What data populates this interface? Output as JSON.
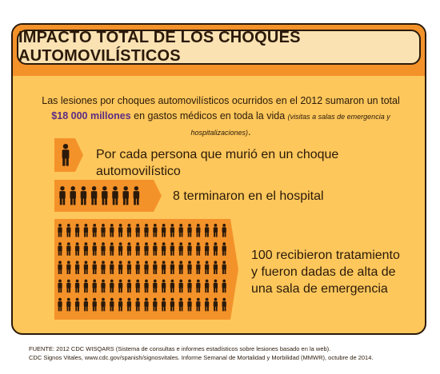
{
  "title": "IMPACTO TOTAL DE LOS CHOQUES AUTOMOVILÍSTICOS",
  "intro": {
    "line1": "Las lesiones por choques automovilísticos ocurridos en el 2012 sumaron un total",
    "amount": "$18 000 millones",
    "line2_text": " en gastos médicos en toda la vida ",
    "line2_small": "(visitas a salas de emergencia y hospitalizaciones)",
    "line2_end": "."
  },
  "stats": [
    {
      "text": "Por cada persona que murió en un choque automovilístico",
      "icon_count": 1
    },
    {
      "text": "8 terminaron en el hospital",
      "icon_count": 8
    },
    {
      "text_lines": [
        "100 recibieron tratamiento",
        "y fueron dadas de alta de",
        "una sala de emergencia"
      ],
      "icon_count": 100
    }
  ],
  "icon": "person-icon",
  "colors": {
    "accent_orange": "#f4922a",
    "card_yellow": "#fdc75b",
    "title_bg": "#fbe2b3",
    "dark": "#2b1a0a",
    "amount_purple": "#5b2c86"
  },
  "source": {
    "line1": "FUENTE: 2012 CDC WISQARS (Sistema de consultas e informes estadísticos sobre lesiones basado en la web).",
    "line2": "CDC Signos Vitales, www.cdc.gov/spanish/signosvitales. Informe Semanal de Mortalidad y Morbilidad (MMWR), octubre de 2014."
  }
}
